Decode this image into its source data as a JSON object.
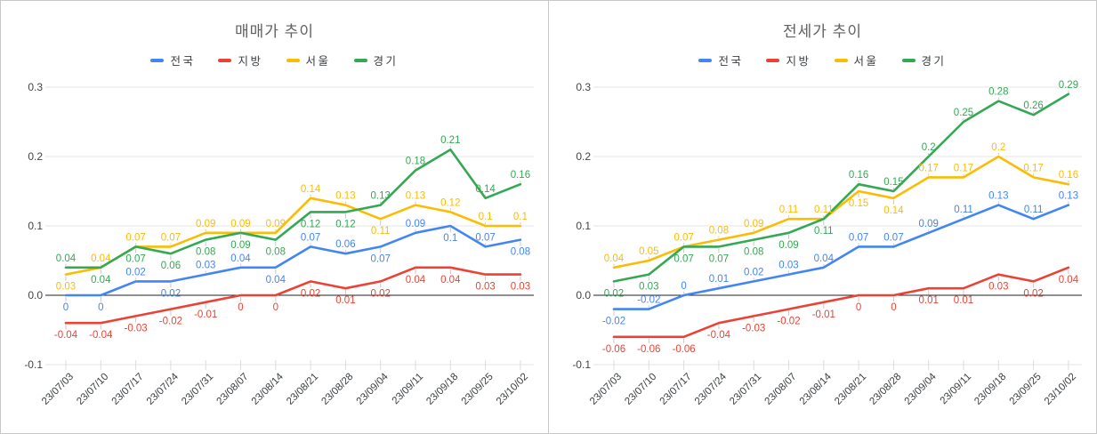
{
  "chart_data": [
    {
      "type": "line",
      "title": "매매가 추이",
      "legend_position": "top",
      "grid": true,
      "ylim": [
        -0.1,
        0.3
      ],
      "yticks": [
        -0.1,
        0,
        0.1,
        0.2,
        0.3
      ],
      "ytick_labels": [
        "-0.1",
        "0.0",
        "0.1",
        "0.2",
        "0.3"
      ],
      "categories": [
        "23/07/03",
        "23/07/10",
        "23/07/17",
        "23/07/24",
        "23/07/31",
        "23/08/07",
        "23/08/14",
        "23/08/21",
        "23/08/28",
        "23/09/04",
        "23/09/11",
        "23/09/18",
        "23/09/25",
        "23/10/02"
      ],
      "series": [
        {
          "name": "전국",
          "color": "#4285F4",
          "values": [
            0,
            0,
            0.02,
            0.02,
            0.03,
            0.04,
            0.04,
            0.07,
            0.06,
            0.07,
            0.09,
            0.1,
            0.07,
            0.08
          ]
        },
        {
          "name": "지방",
          "color": "#EA4335",
          "values": [
            -0.04,
            -0.04,
            -0.03,
            -0.02,
            -0.01,
            0,
            0,
            0.02,
            0.01,
            0.02,
            0.04,
            0.04,
            0.03,
            0.03
          ]
        },
        {
          "name": "서울",
          "color": "#FBBC04",
          "values": [
            0.03,
            0.04,
            0.07,
            0.07,
            0.09,
            0.09,
            0.09,
            0.14,
            0.13,
            0.11,
            0.13,
            0.12,
            0.1,
            0.1
          ]
        },
        {
          "name": "경기",
          "color": "#34A853",
          "values": [
            0.04,
            0.04,
            0.07,
            0.06,
            0.08,
            0.09,
            0.08,
            0.12,
            0.12,
            0.13,
            0.18,
            0.21,
            0.14,
            0.16
          ]
        }
      ]
    },
    {
      "type": "line",
      "title": "전세가 추이",
      "legend_position": "top",
      "grid": true,
      "ylim": [
        -0.1,
        0.3
      ],
      "yticks": [
        -0.1,
        0,
        0.1,
        0.2,
        0.3
      ],
      "ytick_labels": [
        "-0.1",
        "0.0",
        "0.1",
        "0.2",
        "0.3"
      ],
      "categories": [
        "23/07/03",
        "23/07/10",
        "23/07/17",
        "23/07/24",
        "23/07/31",
        "23/08/07",
        "23/08/14",
        "23/08/21",
        "23/08/28",
        "23/09/04",
        "23/09/11",
        "23/09/18",
        "23/09/25",
        "23/10/02"
      ],
      "series": [
        {
          "name": "전국",
          "color": "#4285F4",
          "values": [
            -0.02,
            -0.02,
            0,
            0.01,
            0.02,
            0.03,
            0.04,
            0.07,
            0.07,
            0.09,
            0.11,
            0.13,
            0.11,
            0.13
          ]
        },
        {
          "name": "지방",
          "color": "#EA4335",
          "values": [
            -0.06,
            -0.06,
            -0.06,
            -0.04,
            -0.03,
            -0.02,
            -0.01,
            0,
            0,
            0.01,
            0.01,
            0.03,
            0.02,
            0.04
          ]
        },
        {
          "name": "서울",
          "color": "#FBBC04",
          "values": [
            0.04,
            0.05,
            0.07,
            0.08,
            0.09,
            0.11,
            0.11,
            0.15,
            0.14,
            0.17,
            0.17,
            0.2,
            0.17,
            0.16
          ]
        },
        {
          "name": "경기",
          "color": "#34A853",
          "values": [
            0.02,
            0.03,
            0.07,
            0.07,
            0.08,
            0.09,
            0.11,
            0.16,
            0.15,
            0.2,
            0.25,
            0.28,
            0.26,
            0.29
          ]
        }
      ]
    }
  ]
}
